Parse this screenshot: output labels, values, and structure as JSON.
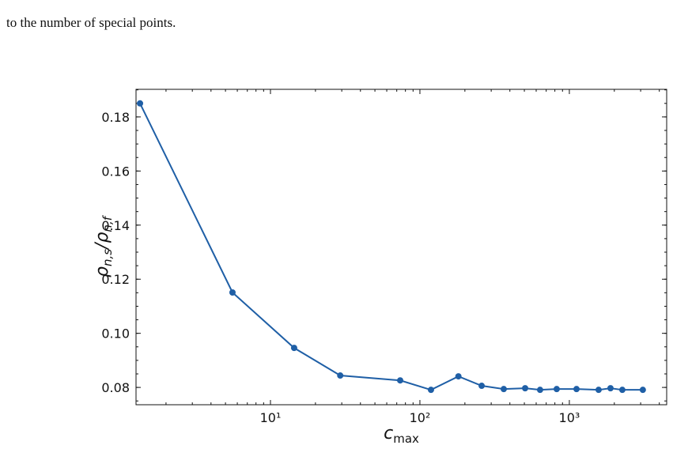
{
  "text": "to the number of special points.",
  "chart_data": {
    "type": "line",
    "xscale": "log",
    "xlabel": {
      "base": "c",
      "sub": "max"
    },
    "ylabel": {
      "parts": [
        {
          "base": "ρ",
          "sub": "n,s"
        },
        {
          "base": "/ρ",
          "sub": "n,f"
        }
      ]
    },
    "x": [
      1.34,
      5.57,
      14.4,
      29.3,
      73.8,
      118.6,
      181,
      259,
      364,
      506,
      637,
      823,
      1117,
      1570,
      1885,
      2262,
      3102
    ],
    "series": [
      {
        "color": "#1f5fa6",
        "values": [
          0.185,
          0.1151,
          0.0946,
          0.0844,
          0.0826,
          0.0791,
          0.0841,
          0.0806,
          0.0794,
          0.0797,
          0.0791,
          0.0794,
          0.0794,
          0.0791,
          0.0797,
          0.0791,
          0.0791
        ]
      }
    ],
    "xlim": [
      1.26,
      4480
    ],
    "ylim": [
      0.0736,
      0.1902
    ],
    "xticks": [
      {
        "value": 10,
        "label": "10¹"
      },
      {
        "value": 100,
        "label": "10²"
      },
      {
        "value": 1000,
        "label": "10³"
      }
    ],
    "yticks": [
      0.08,
      {
        "value": 0.1,
        "label": "0.10"
      },
      0.12,
      0.14,
      0.16,
      0.18
    ],
    "yminor_step": 0.005
  }
}
